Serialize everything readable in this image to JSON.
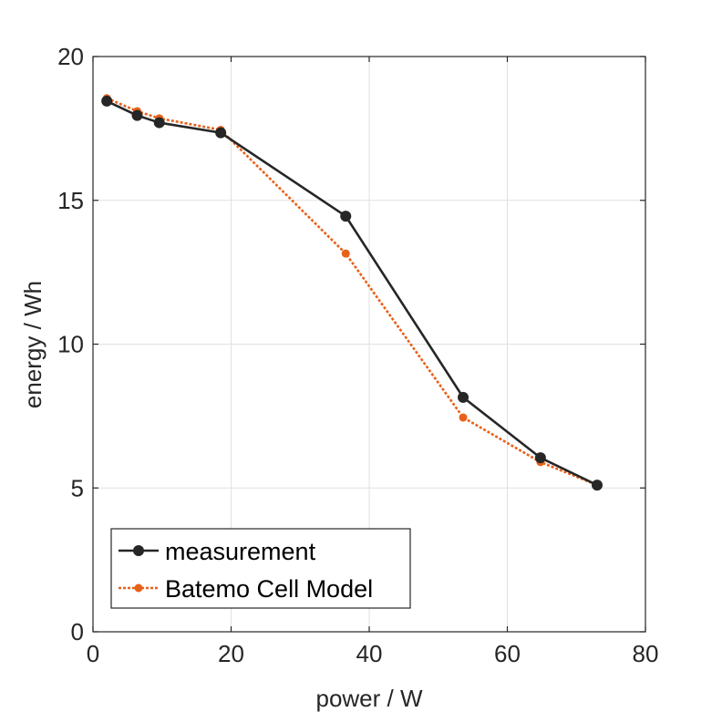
{
  "chart_data": {
    "type": "line",
    "xlabel": "power / W",
    "ylabel": "energy / Wh",
    "xlim": [
      0,
      80
    ],
    "ylim": [
      0,
      20
    ],
    "xticks": [
      "0",
      "20",
      "40",
      "60",
      "80"
    ],
    "yticks": [
      "0",
      "5",
      "10",
      "15",
      "20"
    ],
    "grid": true,
    "legend_position": "bottom-left",
    "series": [
      {
        "name": "measurement",
        "color": "#262626",
        "line_style": "solid",
        "marker": "large-dot",
        "x": [
          2.0,
          6.4,
          9.6,
          18.5,
          36.6,
          53.6,
          64.8,
          73.0
        ],
        "y": [
          18.45,
          17.95,
          17.7,
          17.35,
          14.45,
          8.15,
          6.05,
          5.1
        ]
      },
      {
        "name": "Batemo Cell Model",
        "color": "#e8611a",
        "line_style": "dotted",
        "marker": "small-dot",
        "x": [
          2.0,
          6.4,
          9.6,
          18.5,
          36.6,
          53.6,
          64.8,
          73.0
        ],
        "y": [
          18.55,
          18.1,
          17.85,
          17.45,
          13.15,
          7.45,
          5.9,
          5.1
        ]
      }
    ]
  }
}
